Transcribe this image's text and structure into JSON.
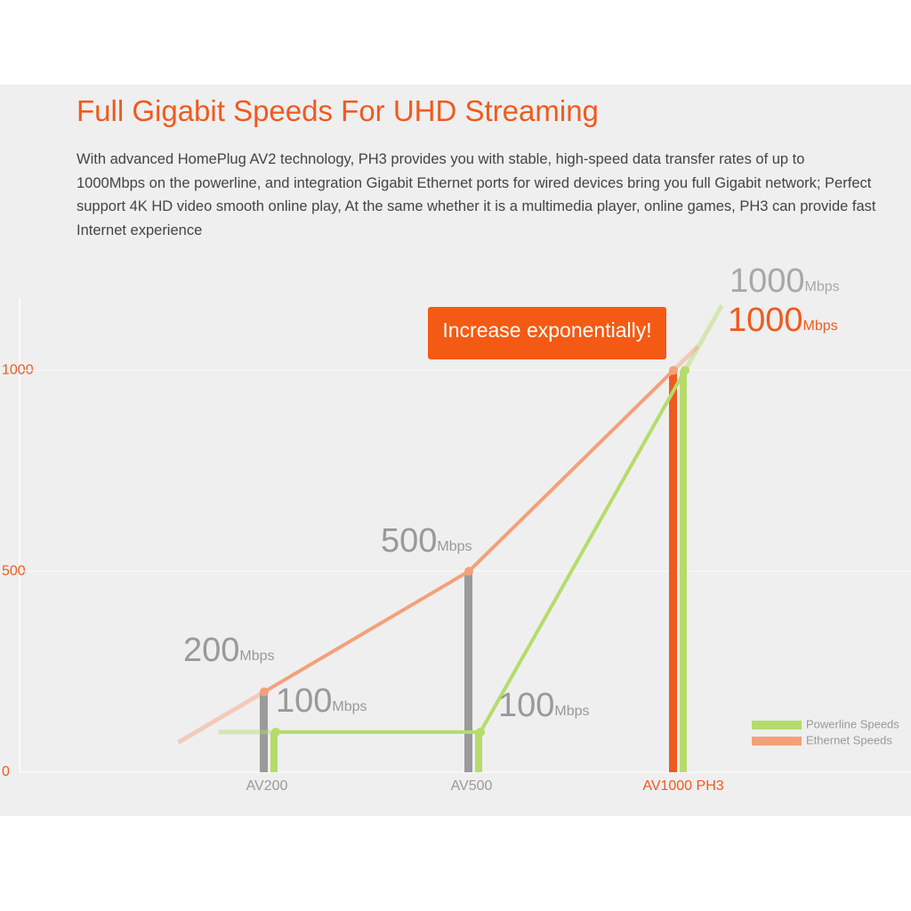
{
  "chart_data": {
    "type": "bar",
    "title": "Full Gigabit Speeds For UHD Streaming",
    "subtitle": "With advanced HomePlug AV2 technology, PH3 provides you with stable, high-speed data transfer rates of up to 1000Mbps on the powerline, and integration Gigabit Ethernet ports for wired devices bring you full Gigabit network; Perfect support 4K HD video smooth online play, At the same whether it is a multimedia player, online games, PH3 can provide fast Internet experience",
    "annotation": "Increase exponentially!",
    "unit": "Mbps",
    "categories": [
      "AV200",
      "AV500",
      "AV1000 PH3"
    ],
    "category_colors": [
      "#9a9a9a",
      "#9a9a9a",
      "#f05a1e"
    ],
    "series": [
      {
        "name": "Powerline Speeds",
        "color": "#b5dc6a",
        "values": [
          100,
          100,
          1000
        ]
      },
      {
        "name": "Ethernet Speeds",
        "color": "#f4a07a",
        "values": [
          200,
          500,
          1000
        ]
      }
    ],
    "ylim": [
      0,
      1200
    ],
    "yticks": [
      0,
      500,
      1000
    ],
    "grid": true
  }
}
